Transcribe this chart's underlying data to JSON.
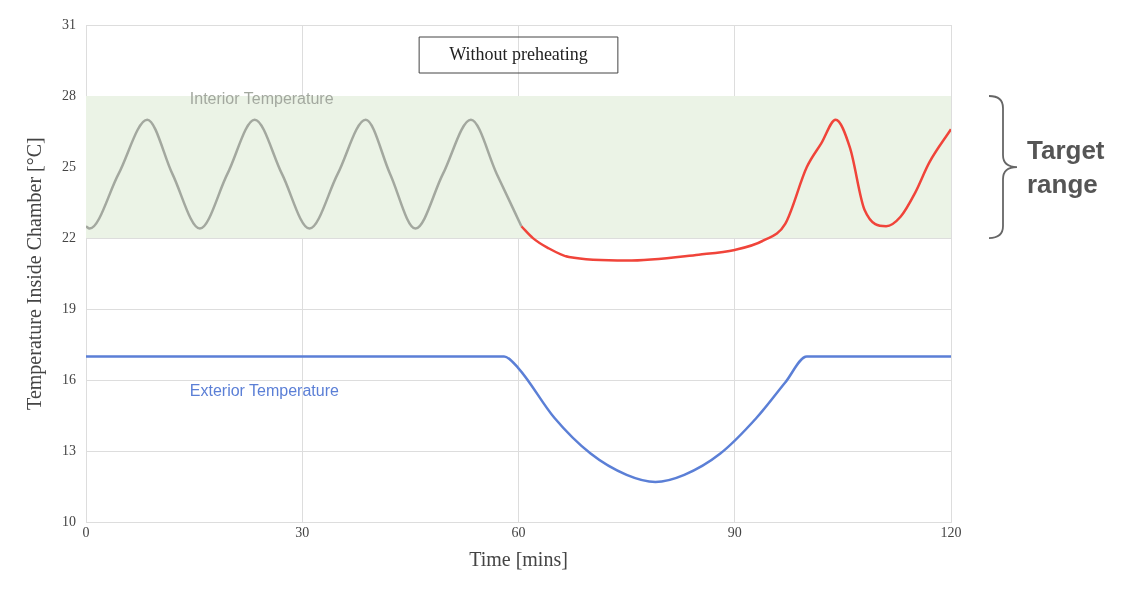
{
  "chart_data": {
    "type": "line",
    "title": "Without preheating",
    "xlabel": "Time [mins]",
    "ylabel": "Temperature Inside Chamber [°C]",
    "xlim": [
      0,
      120
    ],
    "xticks": [
      0,
      30,
      60,
      90,
      120
    ],
    "ylim": [
      10,
      31
    ],
    "yticks": [
      10,
      13,
      16,
      19,
      22,
      25,
      28,
      31
    ],
    "grid": true,
    "legend": false,
    "marker": "none",
    "line_style": "solid",
    "bands": [
      {
        "axis": "y",
        "from": 22,
        "to": 28,
        "label": "Target range",
        "color": "#ebf3e6"
      }
    ],
    "series": [
      {
        "name": "Interior Temperature",
        "color": "#a3a89f",
        "x": [
          0,
          0.5,
          4.5,
          8.5,
          12,
          15.8,
          19.6,
          23.4,
          27.2,
          31,
          34.9,
          38.8,
          42.2,
          45.7,
          49.5,
          53.4,
          57,
          60.4
        ],
        "values": [
          22.5,
          22.4,
          24.7,
          27,
          24.7,
          22.4,
          24.7,
          27,
          24.7,
          22.4,
          24.7,
          27,
          24.7,
          22.4,
          24.7,
          27,
          24.7,
          22.5
        ]
      },
      {
        "color": "#f0443a",
        "x": [
          60.4,
          62,
          64,
          67,
          75,
          85,
          90,
          94,
          97,
          100,
          102,
          104,
          106,
          108,
          111,
          113,
          115,
          117,
          120
        ],
        "values": [
          22.5,
          22,
          21.6,
          21.2,
          21.05,
          21.3,
          21.5,
          21.9,
          22.6,
          25,
          26,
          27,
          25.8,
          23.2,
          22.5,
          22.9,
          23.9,
          25.2,
          26.6
        ]
      },
      {
        "name": "Exterior Temperature",
        "color": "#5b7fd6",
        "x": [
          0,
          58,
          60,
          65,
          70,
          75,
          79,
          83,
          88,
          93,
          97,
          100,
          120
        ],
        "values": [
          17,
          17,
          16.5,
          14.4,
          12.9,
          12,
          11.7,
          12,
          12.9,
          14.4,
          15.9,
          17,
          17
        ]
      }
    ]
  }
}
